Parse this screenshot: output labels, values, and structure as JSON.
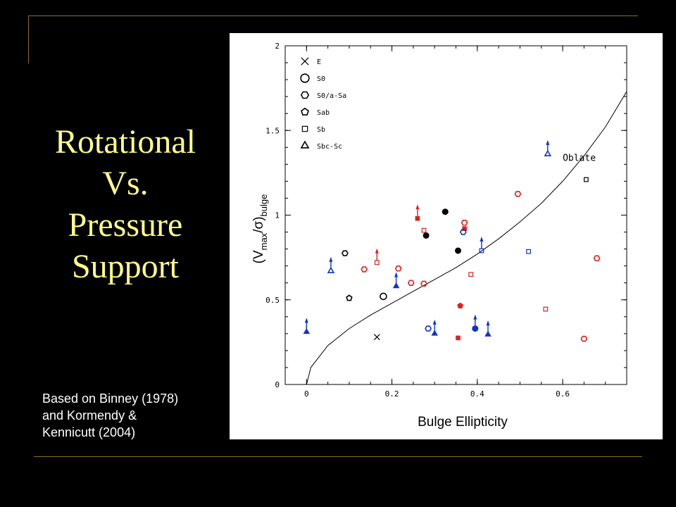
{
  "slide": {
    "title_lines": [
      "Rotational",
      "Vs.",
      "Pressure",
      "Support"
    ],
    "credit_lines": [
      "Based on Binney (1978)",
      "and Kormendy &",
      "Kennicutt (2004)"
    ]
  },
  "colors": {
    "title": "#ffff88",
    "red": "#dd2222",
    "blue": "#1133cc",
    "black": "#000000",
    "rule": "#8a6d2a"
  },
  "chart_data": {
    "type": "scatter",
    "xlabel": "Bulge Ellipticity",
    "ylabel_main": "(V",
    "ylabel_sub1": "max",
    "ylabel_mid": "/σ)",
    "ylabel_sub2": "bulge",
    "xlim": [
      -0.05,
      0.75
    ],
    "ylim": [
      0,
      2
    ],
    "xticks": [
      0,
      0.2,
      0.4,
      0.6
    ],
    "xtick_labels": [
      "0",
      "0.2",
      "0.4",
      "0.6"
    ],
    "yticks": [
      0,
      0.5,
      1,
      1.5,
      2
    ],
    "ytick_labels": [
      "0",
      "0.5",
      "1",
      "1.5",
      "2"
    ],
    "annotation": "Oblate",
    "legend_position": "top-left",
    "legend": [
      {
        "label": "E",
        "marker": "x"
      },
      {
        "label": "S0",
        "marker": "circle-large"
      },
      {
        "label": "S0/a-Sa",
        "marker": "hexagon"
      },
      {
        "label": "Sab",
        "marker": "pentagon"
      },
      {
        "label": "Sb",
        "marker": "square"
      },
      {
        "label": "Sbc-Sc",
        "marker": "triangle"
      }
    ],
    "oblate_curve": [
      [
        0,
        0
      ],
      [
        0.01,
        0.1
      ],
      [
        0.05,
        0.23
      ],
      [
        0.1,
        0.33
      ],
      [
        0.15,
        0.41
      ],
      [
        0.2,
        0.48
      ],
      [
        0.25,
        0.55
      ],
      [
        0.3,
        0.62
      ],
      [
        0.35,
        0.69
      ],
      [
        0.4,
        0.77
      ],
      [
        0.45,
        0.86
      ],
      [
        0.5,
        0.96
      ],
      [
        0.55,
        1.07
      ],
      [
        0.6,
        1.2
      ],
      [
        0.65,
        1.35
      ],
      [
        0.7,
        1.52
      ],
      [
        0.75,
        1.73
      ]
    ],
    "points": [
      {
        "x": 0.165,
        "y": 0.28,
        "marker": "x",
        "color": "black",
        "filled": false,
        "arrow": false
      },
      {
        "x": 0.18,
        "y": 0.52,
        "marker": "circle-large",
        "color": "black",
        "filled": false,
        "arrow": false
      },
      {
        "x": 0.28,
        "y": 0.88,
        "marker": "circle",
        "color": "black",
        "filled": true,
        "arrow": false
      },
      {
        "x": 0.325,
        "y": 1.02,
        "marker": "circle",
        "color": "black",
        "filled": true,
        "arrow": false
      },
      {
        "x": 0.355,
        "y": 0.79,
        "marker": "circle",
        "color": "black",
        "filled": true,
        "arrow": false
      },
      {
        "x": 0.09,
        "y": 0.775,
        "marker": "hexagon",
        "color": "black",
        "filled": false,
        "arrow": false
      },
      {
        "x": 0.1,
        "y": 0.51,
        "marker": "pentagon",
        "color": "black",
        "filled": false,
        "arrow": false
      },
      {
        "x": 0.655,
        "y": 1.21,
        "marker": "square",
        "color": "black",
        "filled": false,
        "arrow": false
      },
      {
        "x": 0.135,
        "y": 0.68,
        "marker": "hexagon",
        "color": "red",
        "filled": false,
        "arrow": false
      },
      {
        "x": 0.215,
        "y": 0.685,
        "marker": "hexagon",
        "color": "red",
        "filled": false,
        "arrow": false
      },
      {
        "x": 0.245,
        "y": 0.6,
        "marker": "hexagon",
        "color": "red",
        "filled": false,
        "arrow": false
      },
      {
        "x": 0.275,
        "y": 0.595,
        "marker": "hexagon",
        "color": "red",
        "filled": false,
        "arrow": false
      },
      {
        "x": 0.37,
        "y": 0.955,
        "marker": "hexagon",
        "color": "red",
        "filled": false,
        "arrow": false
      },
      {
        "x": 0.495,
        "y": 1.125,
        "marker": "hexagon",
        "color": "red",
        "filled": false,
        "arrow": false
      },
      {
        "x": 0.65,
        "y": 0.27,
        "marker": "hexagon",
        "color": "red",
        "filled": false,
        "arrow": false
      },
      {
        "x": 0.68,
        "y": 0.745,
        "marker": "hexagon",
        "color": "red",
        "filled": false,
        "arrow": false
      },
      {
        "x": 0.36,
        "y": 0.465,
        "marker": "pentagon",
        "color": "red",
        "filled": true,
        "arrow": false
      },
      {
        "x": 0.26,
        "y": 0.98,
        "marker": "square",
        "color": "red",
        "filled": true,
        "arrow": true
      },
      {
        "x": 0.165,
        "y": 0.72,
        "marker": "square",
        "color": "red",
        "filled": false,
        "arrow": true
      },
      {
        "x": 0.275,
        "y": 0.91,
        "marker": "square",
        "color": "red",
        "filled": false,
        "arrow": false
      },
      {
        "x": 0.37,
        "y": 0.92,
        "marker": "square",
        "color": "red",
        "filled": true,
        "arrow": false
      },
      {
        "x": 0.385,
        "y": 0.65,
        "marker": "square",
        "color": "red",
        "filled": false,
        "arrow": false
      },
      {
        "x": 0.355,
        "y": 0.275,
        "marker": "square",
        "color": "red",
        "filled": true,
        "arrow": false
      },
      {
        "x": 0.56,
        "y": 0.445,
        "marker": "square",
        "color": "red",
        "filled": false,
        "arrow": false
      },
      {
        "x": 0.41,
        "y": 0.79,
        "marker": "square",
        "color": "blue",
        "filled": false,
        "arrow": true
      },
      {
        "x": 0.52,
        "y": 0.785,
        "marker": "square",
        "color": "blue",
        "filled": false,
        "arrow": false
      },
      {
        "x": 0.0,
        "y": 0.31,
        "marker": "triangle",
        "color": "blue",
        "filled": true,
        "arrow": true
      },
      {
        "x": 0.057,
        "y": 0.67,
        "marker": "triangle",
        "color": "blue",
        "filled": false,
        "arrow": true
      },
      {
        "x": 0.21,
        "y": 0.58,
        "marker": "triangle",
        "color": "blue",
        "filled": true,
        "arrow": true
      },
      {
        "x": 0.3,
        "y": 0.3,
        "marker": "triangle",
        "color": "blue",
        "filled": true,
        "arrow": true
      },
      {
        "x": 0.395,
        "y": 0.33,
        "marker": "circle",
        "color": "blue",
        "filled": true,
        "arrow": true
      },
      {
        "x": 0.425,
        "y": 0.295,
        "marker": "triangle",
        "color": "blue",
        "filled": true,
        "arrow": true
      },
      {
        "x": 0.565,
        "y": 1.36,
        "marker": "triangle",
        "color": "blue",
        "filled": false,
        "arrow": true
      },
      {
        "x": 0.285,
        "y": 0.33,
        "marker": "hexagon",
        "color": "blue",
        "filled": false,
        "arrow": false
      },
      {
        "x": 0.367,
        "y": 0.9,
        "marker": "hexagon",
        "color": "blue",
        "filled": false,
        "arrow": false
      }
    ]
  }
}
